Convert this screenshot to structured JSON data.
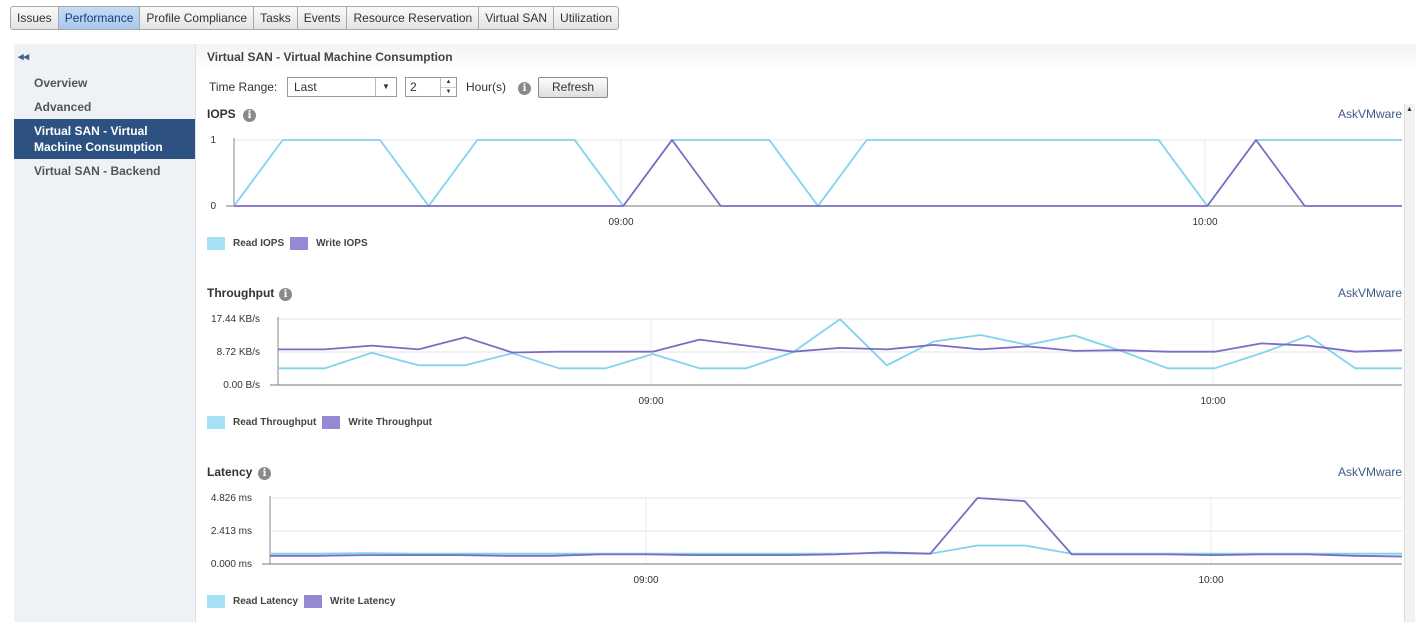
{
  "tabs": [
    {
      "label": "Issues",
      "active": false
    },
    {
      "label": "Performance",
      "active": true
    },
    {
      "label": "Profile Compliance",
      "active": false
    },
    {
      "label": "Tasks",
      "active": false
    },
    {
      "label": "Events",
      "active": false
    },
    {
      "label": "Resource Reservation",
      "active": false
    },
    {
      "label": "Virtual SAN",
      "active": false
    },
    {
      "label": "Utilization",
      "active": false
    }
  ],
  "sidebar": {
    "collapse_icon": "double-chevron-left-icon",
    "items": [
      {
        "label": "Overview",
        "selected": false
      },
      {
        "label": "Advanced",
        "selected": false
      },
      {
        "label": "Virtual SAN - Virtual Machine Consumption",
        "selected": true
      },
      {
        "label": "Virtual SAN - Backend",
        "selected": false
      }
    ]
  },
  "main": {
    "title": "Virtual SAN - Virtual Machine Consumption",
    "time_range_label": "Time Range:",
    "time_range_select": "Last",
    "time_value": "2",
    "time_unit": "Hour(s)",
    "refresh_label": "Refresh",
    "ask_label": "AskVMware"
  },
  "colors": {
    "read": "#7fd3ee",
    "write": "#7b6cc4",
    "read_swatch": "#a6e1f7",
    "write_swatch": "#9489d3"
  },
  "chart_data": [
    {
      "type": "line",
      "title": "IOPS",
      "yticks": [
        "1",
        "0"
      ],
      "ylim": [
        0,
        1
      ],
      "xticks": [
        "09:00",
        "10:00"
      ],
      "x": [
        0,
        1,
        2,
        3,
        4,
        5,
        6,
        7,
        8,
        9,
        10,
        11,
        12,
        13,
        14,
        15,
        16,
        17,
        18,
        19,
        20,
        21,
        22,
        23,
        24
      ],
      "series": [
        {
          "name": "Read IOPS",
          "values": [
            0,
            1,
            1,
            1,
            0,
            1,
            1,
            1,
            0,
            1,
            1,
            1,
            0,
            1,
            1,
            1,
            1,
            1,
            1,
            1,
            0,
            1,
            1,
            1,
            1
          ]
        },
        {
          "name": "Write IOPS",
          "values": [
            0,
            0,
            0,
            0,
            0,
            0,
            0,
            0,
            0,
            1,
            0,
            0,
            0,
            0,
            0,
            0,
            0,
            0,
            0,
            0,
            0,
            1,
            0,
            0,
            0
          ]
        }
      ],
      "legend": "bottom-left"
    },
    {
      "type": "line",
      "title": "Throughput",
      "yticks": [
        "17.44 KB/s",
        "8.72 KB/s",
        "0.00 B/s"
      ],
      "ylim": [
        0,
        17.44
      ],
      "xticks": [
        "09:00",
        "10:00"
      ],
      "x": [
        0,
        1,
        2,
        3,
        4,
        5,
        6,
        7,
        8,
        9,
        10,
        11,
        12,
        13,
        14,
        15,
        16,
        17,
        18,
        19,
        20,
        21,
        22,
        23,
        24
      ],
      "series": [
        {
          "name": "Read Throughput",
          "values": [
            4.4,
            4.4,
            8.5,
            5.2,
            5.2,
            8.4,
            4.4,
            4.4,
            8.2,
            4.4,
            4.4,
            8.7,
            17.4,
            5.2,
            11.5,
            13.2,
            10.6,
            13.1,
            9.0,
            4.4,
            4.4,
            8.4,
            13.0,
            4.4,
            4.4
          ]
        },
        {
          "name": "Write Throughput",
          "values": [
            9.4,
            9.4,
            10.4,
            9.4,
            12.6,
            8.6,
            8.8,
            8.8,
            8.8,
            12.0,
            10.4,
            8.8,
            9.8,
            9.4,
            10.6,
            9.4,
            10.2,
            9.0,
            9.2,
            8.8,
            8.8,
            11.0,
            10.4,
            8.8,
            9.2
          ]
        }
      ],
      "legend": "bottom-left"
    },
    {
      "type": "line",
      "title": "Latency",
      "yticks": [
        "4.826 ms",
        "2.413 ms",
        "0.000 ms"
      ],
      "ylim": [
        0,
        4.826
      ],
      "xticks": [
        "09:00",
        "10:00"
      ],
      "x": [
        0,
        1,
        2,
        3,
        4,
        5,
        6,
        7,
        8,
        9,
        10,
        11,
        12,
        13,
        14,
        15,
        16,
        17,
        18,
        19,
        20,
        21,
        22,
        23,
        24
      ],
      "series": [
        {
          "name": "Read Latency",
          "values": [
            0.75,
            0.75,
            0.8,
            0.75,
            0.75,
            0.75,
            0.75,
            0.75,
            0.75,
            0.75,
            0.75,
            0.75,
            0.75,
            0.8,
            0.75,
            1.35,
            1.35,
            0.75,
            0.75,
            0.75,
            0.75,
            0.75,
            0.75,
            0.75,
            0.75
          ]
        },
        {
          "name": "Write Latency",
          "values": [
            0.6,
            0.6,
            0.65,
            0.65,
            0.65,
            0.6,
            0.6,
            0.7,
            0.7,
            0.65,
            0.65,
            0.65,
            0.7,
            0.85,
            0.75,
            4.826,
            4.6,
            0.7,
            0.7,
            0.7,
            0.65,
            0.7,
            0.7,
            0.6,
            0.55
          ]
        }
      ],
      "legend": "bottom-left"
    }
  ]
}
